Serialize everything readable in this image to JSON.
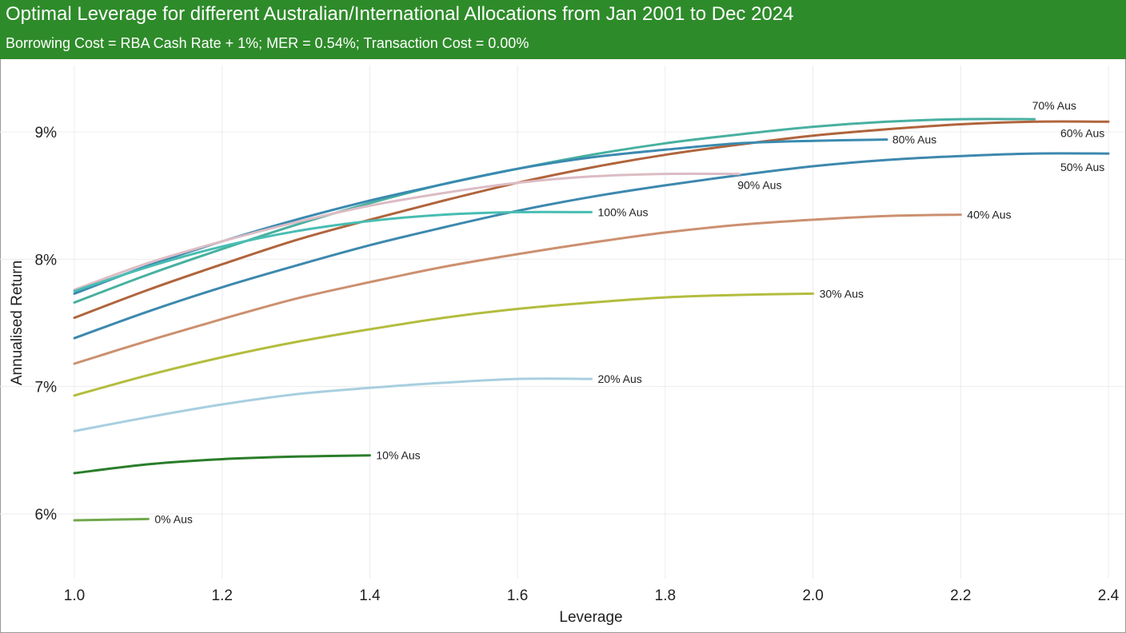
{
  "header": {
    "title": "Optimal Leverage for different Australian/International Allocations from Jan 2001 to Dec 2024",
    "subtitle": "Borrowing Cost = RBA Cash Rate + 1%; MER = 0.54%; Transaction Cost = 0.00%"
  },
  "chart_data": {
    "type": "line",
    "title": "Optimal Leverage for different Australian/International Allocations from Jan 2001 to Dec 2024",
    "subtitle": "Borrowing Cost = RBA Cash Rate + 1%; MER = 0.54%; Transaction Cost = 0.00%",
    "xlabel": "Leverage",
    "ylabel": "Annualised Return",
    "xlim": [
      1.0,
      2.4
    ],
    "ylim": [
      5.55,
      9.55
    ],
    "x_ticks": [
      "1.0",
      "1.2",
      "1.4",
      "1.6",
      "1.8",
      "2.0",
      "2.2",
      "2.4"
    ],
    "y_ticks": [
      "6%",
      "7%",
      "8%",
      "9%"
    ],
    "grid": true,
    "legend": "inline labels at line ends",
    "series": [
      {
        "name": "0% Aus",
        "color": "#70a84c",
        "x": [
          1.0,
          1.1
        ],
        "y": [
          5.95,
          5.96
        ]
      },
      {
        "name": "10% Aus",
        "color": "#2a7d2a",
        "x": [
          1.0,
          1.1,
          1.2,
          1.3,
          1.4
        ],
        "y": [
          6.32,
          6.39,
          6.43,
          6.45,
          6.46
        ]
      },
      {
        "name": "20% Aus",
        "color": "#a8cfe0",
        "x": [
          1.0,
          1.1,
          1.2,
          1.3,
          1.4,
          1.5,
          1.6,
          1.7
        ],
        "y": [
          6.65,
          6.76,
          6.86,
          6.94,
          6.99,
          7.03,
          7.06,
          7.06
        ]
      },
      {
        "name": "30% Aus",
        "color": "#b3bd3e",
        "x": [
          1.0,
          1.1,
          1.2,
          1.3,
          1.4,
          1.5,
          1.6,
          1.7,
          1.8,
          1.9,
          2.0
        ],
        "y": [
          6.93,
          7.09,
          7.23,
          7.35,
          7.45,
          7.54,
          7.61,
          7.66,
          7.7,
          7.72,
          7.73
        ]
      },
      {
        "name": "40% Aus",
        "color": "#cc9070",
        "x": [
          1.0,
          1.1,
          1.2,
          1.3,
          1.4,
          1.5,
          1.6,
          1.7,
          1.8,
          1.9,
          2.0,
          2.1,
          2.2
        ],
        "y": [
          7.18,
          7.36,
          7.53,
          7.69,
          7.82,
          7.94,
          8.04,
          8.13,
          8.21,
          8.27,
          8.31,
          8.34,
          8.35
        ]
      },
      {
        "name": "50% Aus",
        "color": "#3d88ae",
        "x": [
          1.0,
          1.1,
          1.2,
          1.3,
          1.4,
          1.5,
          1.6,
          1.7,
          1.8,
          1.9,
          2.0,
          2.1,
          2.2,
          2.3,
          2.4
        ],
        "y": [
          7.38,
          7.59,
          7.78,
          7.95,
          8.11,
          8.25,
          8.38,
          8.49,
          8.58,
          8.66,
          8.73,
          8.78,
          8.81,
          8.83,
          8.83
        ]
      },
      {
        "name": "60% Aus",
        "color": "#b0643c",
        "x": [
          1.0,
          1.1,
          1.2,
          1.3,
          1.4,
          1.5,
          1.6,
          1.7,
          1.8,
          1.9,
          2.0,
          2.1,
          2.2,
          2.3,
          2.4
        ],
        "y": [
          7.54,
          7.76,
          7.96,
          8.15,
          8.31,
          8.46,
          8.6,
          8.72,
          8.82,
          8.9,
          8.97,
          9.02,
          9.06,
          9.08,
          9.08
        ]
      },
      {
        "name": "70% Aus",
        "color": "#48b0a0",
        "x": [
          1.0,
          1.1,
          1.2,
          1.3,
          1.4,
          1.5,
          1.6,
          1.7,
          1.8,
          1.9,
          2.0,
          2.1,
          2.2,
          2.3
        ],
        "y": [
          7.66,
          7.88,
          8.08,
          8.27,
          8.44,
          8.59,
          8.71,
          8.82,
          8.91,
          8.98,
          9.04,
          9.08,
          9.1,
          9.1
        ]
      },
      {
        "name": "80% Aus",
        "color": "#3a8ab0",
        "x": [
          1.0,
          1.1,
          1.2,
          1.3,
          1.4,
          1.5,
          1.6,
          1.7,
          1.8,
          1.9,
          2.0,
          2.1
        ],
        "y": [
          7.73,
          7.95,
          8.14,
          8.31,
          8.46,
          8.59,
          8.71,
          8.8,
          8.86,
          8.91,
          8.93,
          8.94
        ]
      },
      {
        "name": "90% Aus",
        "color": "#dcbcc4",
        "x": [
          1.0,
          1.1,
          1.2,
          1.3,
          1.4,
          1.5,
          1.6,
          1.7,
          1.8,
          1.9
        ],
        "y": [
          7.76,
          7.97,
          8.14,
          8.29,
          8.42,
          8.52,
          8.6,
          8.65,
          8.67,
          8.67
        ]
      },
      {
        "name": "100% Aus",
        "color": "#48bdb2",
        "x": [
          1.0,
          1.1,
          1.2,
          1.3,
          1.4,
          1.5,
          1.6,
          1.7
        ],
        "y": [
          7.75,
          7.94,
          8.1,
          8.22,
          8.3,
          8.35,
          8.37,
          8.37
        ]
      }
    ]
  }
}
